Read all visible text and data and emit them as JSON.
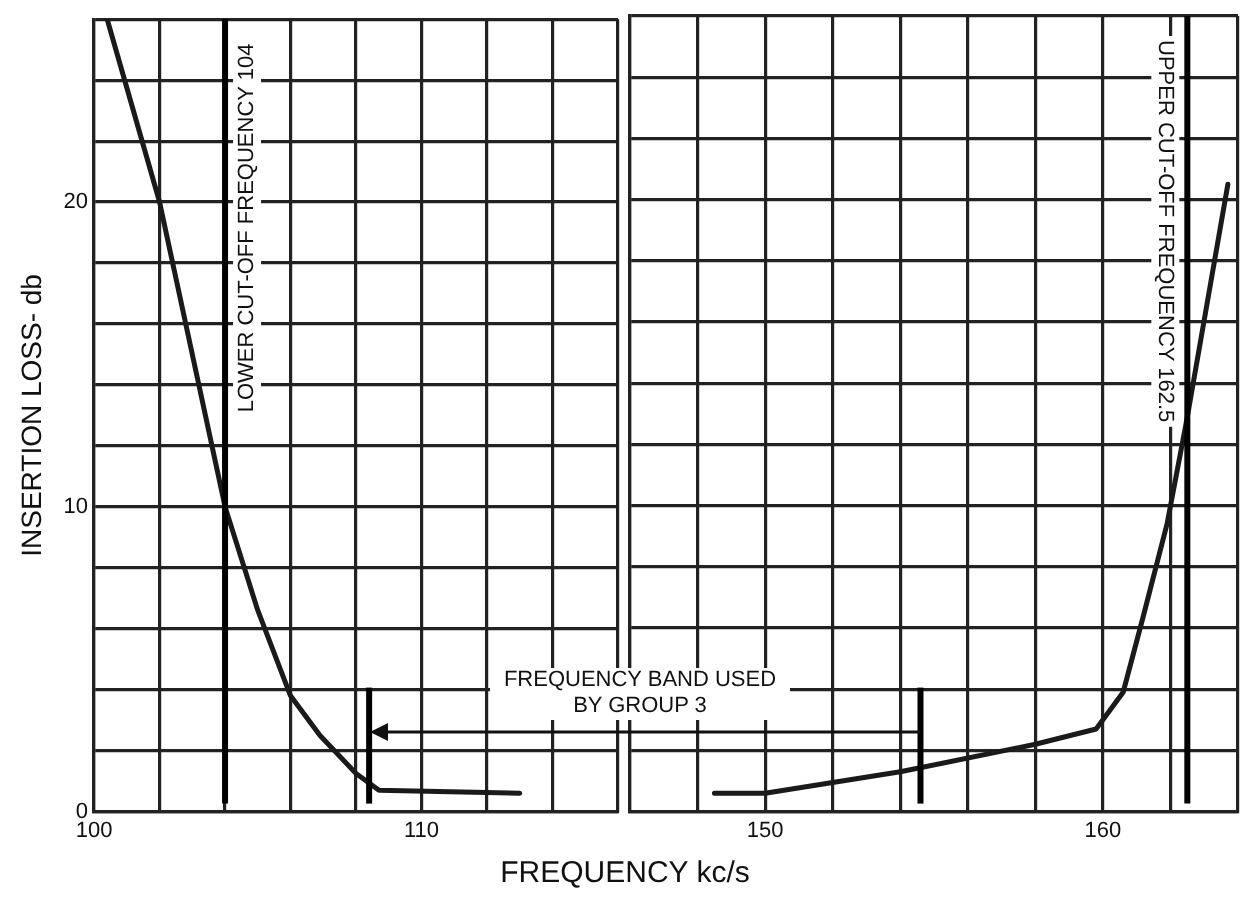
{
  "chart_data": [
    {
      "type": "line",
      "xlabel": "FREQUENCY kc/s",
      "ylabel": "INSERTION LOSS- db",
      "xlim": [
        100,
        116
      ],
      "xticks": [
        100,
        {
          "value": 102,
          "label": null
        },
        {
          "value": 104,
          "label": null
        },
        {
          "value": 106,
          "label": null
        },
        {
          "value": 108,
          "label": null
        },
        110,
        {
          "value": 112,
          "label": null
        },
        {
          "value": 114,
          "label": null
        },
        {
          "value": 116,
          "label": null
        }
      ],
      "ylim": [
        0,
        26
      ],
      "yticks": [
        0,
        {
          "value": 2,
          "label": null
        },
        {
          "value": 4,
          "label": null
        },
        {
          "value": 6,
          "label": null
        },
        {
          "value": 8,
          "label": null
        },
        10,
        {
          "value": 12,
          "label": null
        },
        {
          "value": 14,
          "label": null
        },
        {
          "value": 16,
          "label": null
        },
        {
          "value": 18,
          "label": null
        },
        20,
        {
          "value": 22,
          "label": null
        },
        {
          "value": 24,
          "label": null
        },
        {
          "value": 26,
          "label": null
        }
      ],
      "grid": true,
      "legend": false,
      "marker": "none",
      "line_style": "solid",
      "series": [
        {
          "color": "#1a1a1a",
          "x": [
            100.4,
            102,
            104,
            105,
            106,
            106.9,
            108,
            108.7,
            113
          ],
          "values": [
            26,
            20,
            10,
            6.6,
            3.8,
            2.5,
            1.25,
            0.7,
            0.6
          ]
        }
      ],
      "ref_lines": [
        {
          "axis": "x",
          "value": 104,
          "label": "LOWER CUT-OFF FREQUENCY 104",
          "color": "#000000"
        },
        {
          "axis": "x",
          "value": 108.4,
          "color": "#000000"
        }
      ],
      "annotations": [
        "FREQUENCY BAND USED BY GROUP 3"
      ]
    },
    {
      "type": "line",
      "xlim": [
        146,
        164
      ],
      "xticks": [
        {
          "value": 146,
          "label": null
        },
        {
          "value": 148,
          "label": null
        },
        150,
        {
          "value": 152,
          "label": null
        },
        {
          "value": 154,
          "label": null
        },
        {
          "value": 156,
          "label": null
        },
        {
          "value": 158,
          "label": null
        },
        160,
        {
          "value": 162,
          "label": null
        },
        {
          "value": 164,
          "label": null
        }
      ],
      "ylim": [
        0,
        26
      ],
      "yticks": [
        0,
        {
          "value": 2,
          "label": null
        },
        {
          "value": 4,
          "label": null
        },
        {
          "value": 6,
          "label": null
        },
        {
          "value": 8,
          "label": null
        },
        10,
        {
          "value": 12,
          "label": null
        },
        {
          "value": 14,
          "label": null
        },
        {
          "value": 16,
          "label": null
        },
        {
          "value": 18,
          "label": null
        },
        20,
        {
          "value": 22,
          "label": null
        },
        {
          "value": 24,
          "label": null
        },
        {
          "value": 26,
          "label": null
        }
      ],
      "tick_labels": "x",
      "grid": true,
      "legend": false,
      "marker": "none",
      "line_style": "solid",
      "series": [
        {
          "color": "#1a1a1a",
          "x": [
            148.5,
            150,
            154,
            158,
            159.8,
            160.6,
            161.2,
            161.9,
            162.5,
            163.7
          ],
          "values": [
            0.6,
            0.6,
            1.3,
            2.2,
            2.7,
            3.9,
            6.4,
            9.4,
            12.9,
            20.5
          ]
        }
      ],
      "ref_lines": [
        {
          "axis": "x",
          "value": 162.5,
          "label": "UPPER CUT-OFF FREQUENCY 162.5",
          "color": "#000000"
        },
        {
          "axis": "x",
          "value": 154.6,
          "color": "#000000"
        }
      ]
    }
  ]
}
